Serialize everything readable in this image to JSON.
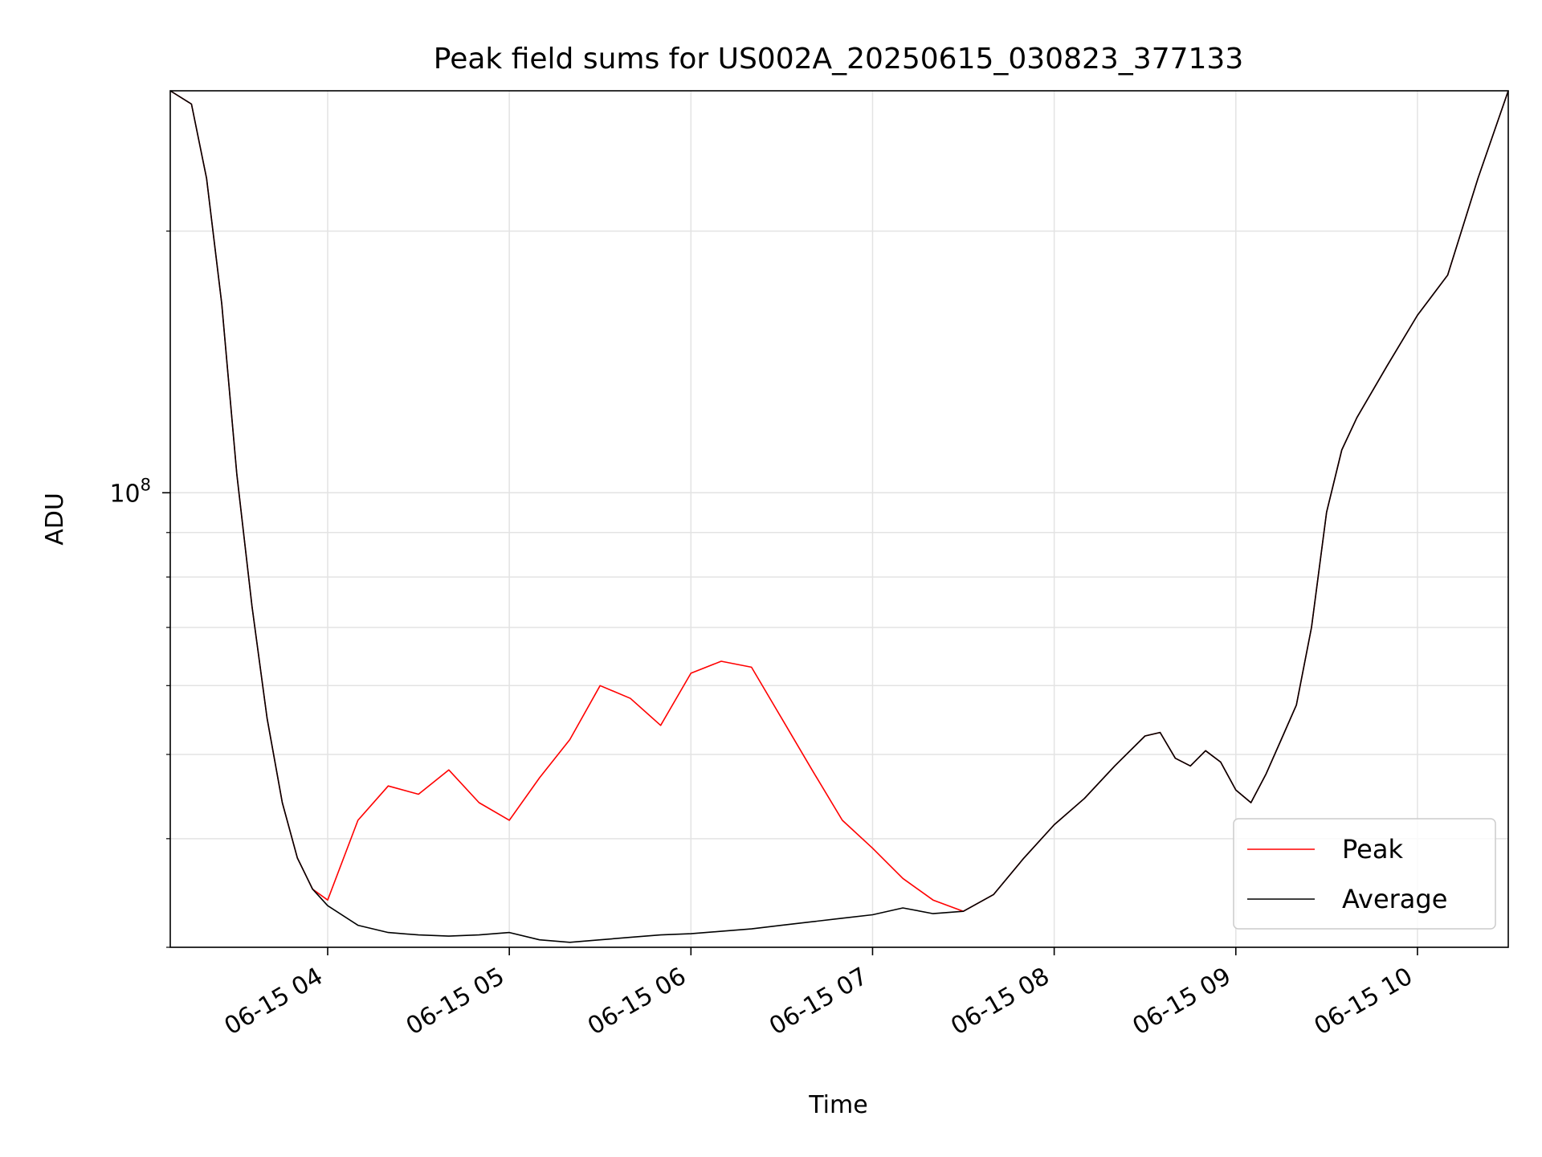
{
  "chart_data": {
    "type": "line",
    "title": "Peak field sums for US002A_20250615_030823_377133",
    "xlabel": "Time",
    "ylabel": "ADU",
    "yscale": "log",
    "grid": true,
    "legend_placement": "lower-right",
    "x_range": [
      "2025-06-15 03:08",
      "2025-06-15 10:30"
    ],
    "y_range": [
      30000000,
      290000000
    ],
    "x_ticks": [
      "06-15 04",
      "06-15 05",
      "06-15 06",
      "06-15 07",
      "06-15 08",
      "06-15 09",
      "06-15 10"
    ],
    "y_tick_labels": [
      {
        "value": 100000000,
        "label": "10^8"
      }
    ],
    "series": [
      {
        "name": "Peak",
        "color": "#ff0000",
        "x": [
          "03:08",
          "03:15",
          "03:20",
          "03:25",
          "03:30",
          "03:35",
          "03:40",
          "03:45",
          "03:50",
          "03:55",
          "04:00",
          "04:10",
          "04:20",
          "04:30",
          "04:40",
          "04:50",
          "05:00",
          "05:10",
          "05:20",
          "05:30",
          "05:40",
          "05:50",
          "06:00",
          "06:10",
          "06:20",
          "06:30",
          "06:40",
          "06:50",
          "07:00",
          "07:10",
          "07:20",
          "07:30",
          "07:40",
          "07:50",
          "08:00",
          "08:10",
          "08:20",
          "08:30",
          "08:35",
          "08:40",
          "08:45",
          "08:50",
          "08:55",
          "09:00",
          "09:05",
          "09:10",
          "09:15",
          "09:20",
          "09:25",
          "09:30",
          "09:35",
          "09:40",
          "09:50",
          "10:00",
          "10:10",
          "10:20",
          "10:30"
        ],
        "values": [
          290000000,
          280000000,
          230000000,
          165000000,
          105000000,
          74000000,
          55000000,
          44000000,
          38000000,
          35000000,
          34000000,
          42000000,
          46000000,
          45000000,
          48000000,
          44000000,
          42000000,
          47000000,
          52000000,
          60000000,
          58000000,
          54000000,
          62000000,
          64000000,
          63000000,
          55000000,
          48000000,
          42000000,
          39000000,
          36000000,
          34000000,
          33000000,
          34500000,
          38000000,
          41500000,
          44500000,
          48500000,
          52500000,
          53000000,
          49500000,
          48500000,
          50500000,
          49000000,
          45500000,
          44000000,
          47500000,
          52000000,
          57000000,
          70000000,
          95000000,
          112000000,
          122000000,
          140000000,
          160000000,
          178000000,
          230000000,
          290000000
        ]
      },
      {
        "name": "Average",
        "color": "#000000",
        "x": [
          "03:08",
          "03:15",
          "03:20",
          "03:25",
          "03:30",
          "03:35",
          "03:40",
          "03:45",
          "03:50",
          "03:55",
          "04:00",
          "04:10",
          "04:20",
          "04:30",
          "04:40",
          "04:50",
          "05:00",
          "05:10",
          "05:20",
          "05:30",
          "05:40",
          "05:50",
          "06:00",
          "06:10",
          "06:20",
          "06:30",
          "06:40",
          "06:50",
          "07:00",
          "07:10",
          "07:20",
          "07:30",
          "07:40",
          "07:50",
          "08:00",
          "08:10",
          "08:20",
          "08:30",
          "08:35",
          "08:40",
          "08:45",
          "08:50",
          "08:55",
          "09:00",
          "09:05",
          "09:10",
          "09:15",
          "09:20",
          "09:25",
          "09:30",
          "09:35",
          "09:40",
          "09:50",
          "10:00",
          "10:10",
          "10:20",
          "10:30"
        ],
        "values": [
          290000000,
          280000000,
          230000000,
          165000000,
          105000000,
          74000000,
          55000000,
          44000000,
          38000000,
          35000000,
          33500000,
          31800000,
          31200000,
          31000000,
          30900000,
          31000000,
          31200000,
          30600000,
          30400000,
          30600000,
          30800000,
          31000000,
          31100000,
          31300000,
          31500000,
          31800000,
          32100000,
          32400000,
          32700000,
          33300000,
          32800000,
          33000000,
          34500000,
          38000000,
          41500000,
          44500000,
          48500000,
          52500000,
          53000000,
          49500000,
          48500000,
          50500000,
          49000000,
          45500000,
          44000000,
          47500000,
          52000000,
          57000000,
          70000000,
          95000000,
          112000000,
          122000000,
          140000000,
          160000000,
          178000000,
          230000000,
          290000000
        ]
      }
    ]
  }
}
